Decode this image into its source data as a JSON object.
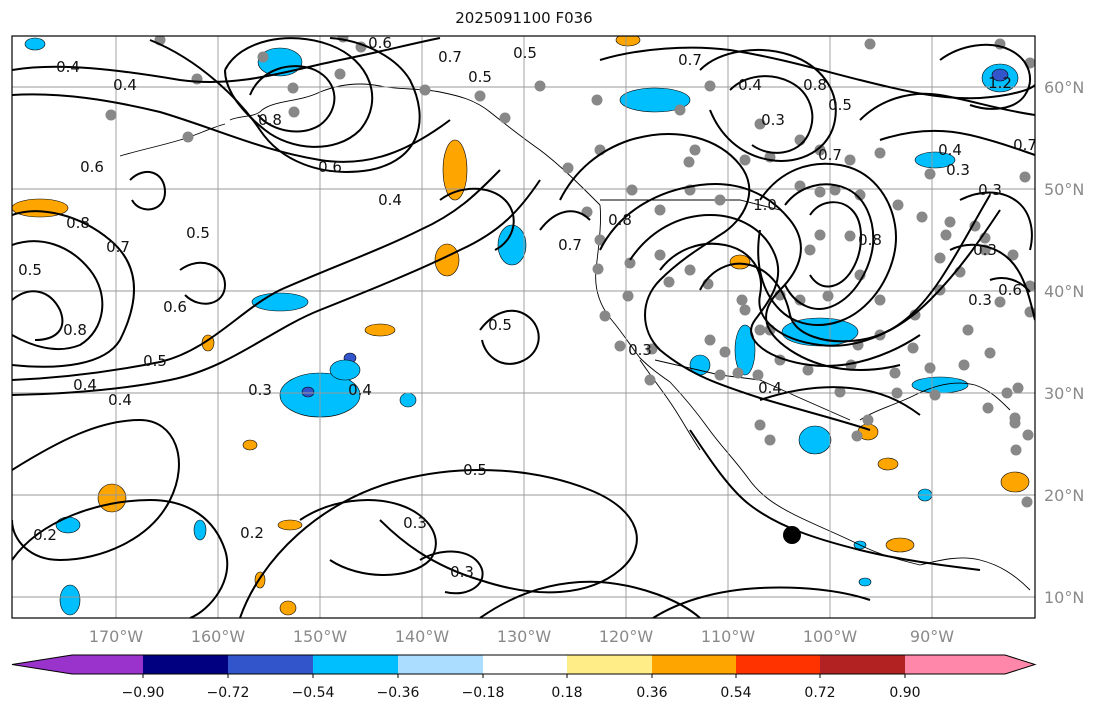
{
  "title": "2025091100 F036",
  "lon_labels": [
    "170°W",
    "160°W",
    "150°W",
    "140°W",
    "130°W",
    "120°W",
    "110°W",
    "100°W",
    "90°W"
  ],
  "lat_labels": [
    "60°N",
    "50°N",
    "40°N",
    "30°N",
    "20°N",
    "10°N"
  ],
  "contour_labels": [
    "0.4",
    "0.4",
    "0.6",
    "0.7",
    "0.5",
    "0.5",
    "0.8",
    "0.7",
    "0.6",
    "0.6",
    "0.4",
    "0.8",
    "0.7",
    "0.5",
    "0.5",
    "0.8",
    "0.6",
    "0.5",
    "0.4",
    "0.4",
    "0.3",
    "0.4",
    "0.5",
    "0.3",
    "0.2",
    "0.3",
    "0.2",
    "0.5",
    "0.7",
    "0.8",
    "0.7",
    "0.3",
    "0.5",
    "0.8",
    "0.4",
    "0.3",
    "0.4",
    "0.3",
    "0.6",
    "0.7",
    "1.0",
    "0.8",
    "0.4",
    "0.3",
    "0.3",
    "1.2",
    "0.3"
  ],
  "colorbar": {
    "colors": [
      "#9933cc",
      "#000080",
      "#3355cc",
      "#00bfff",
      "#aaddff",
      "#ffffff",
      "#ffee88",
      "#ffa500",
      "#ff3300",
      "#b22222",
      "#ff88aa"
    ],
    "tick_labels": [
      "−0.90",
      "−0.72",
      "−0.54",
      "−0.36",
      "−0.18",
      "0.18",
      "0.36",
      "0.54",
      "0.72",
      "0.90"
    ]
  },
  "colors": {
    "contour": "#000000",
    "grid": "#999999",
    "stations": "#888888",
    "marker": "#000000"
  }
}
